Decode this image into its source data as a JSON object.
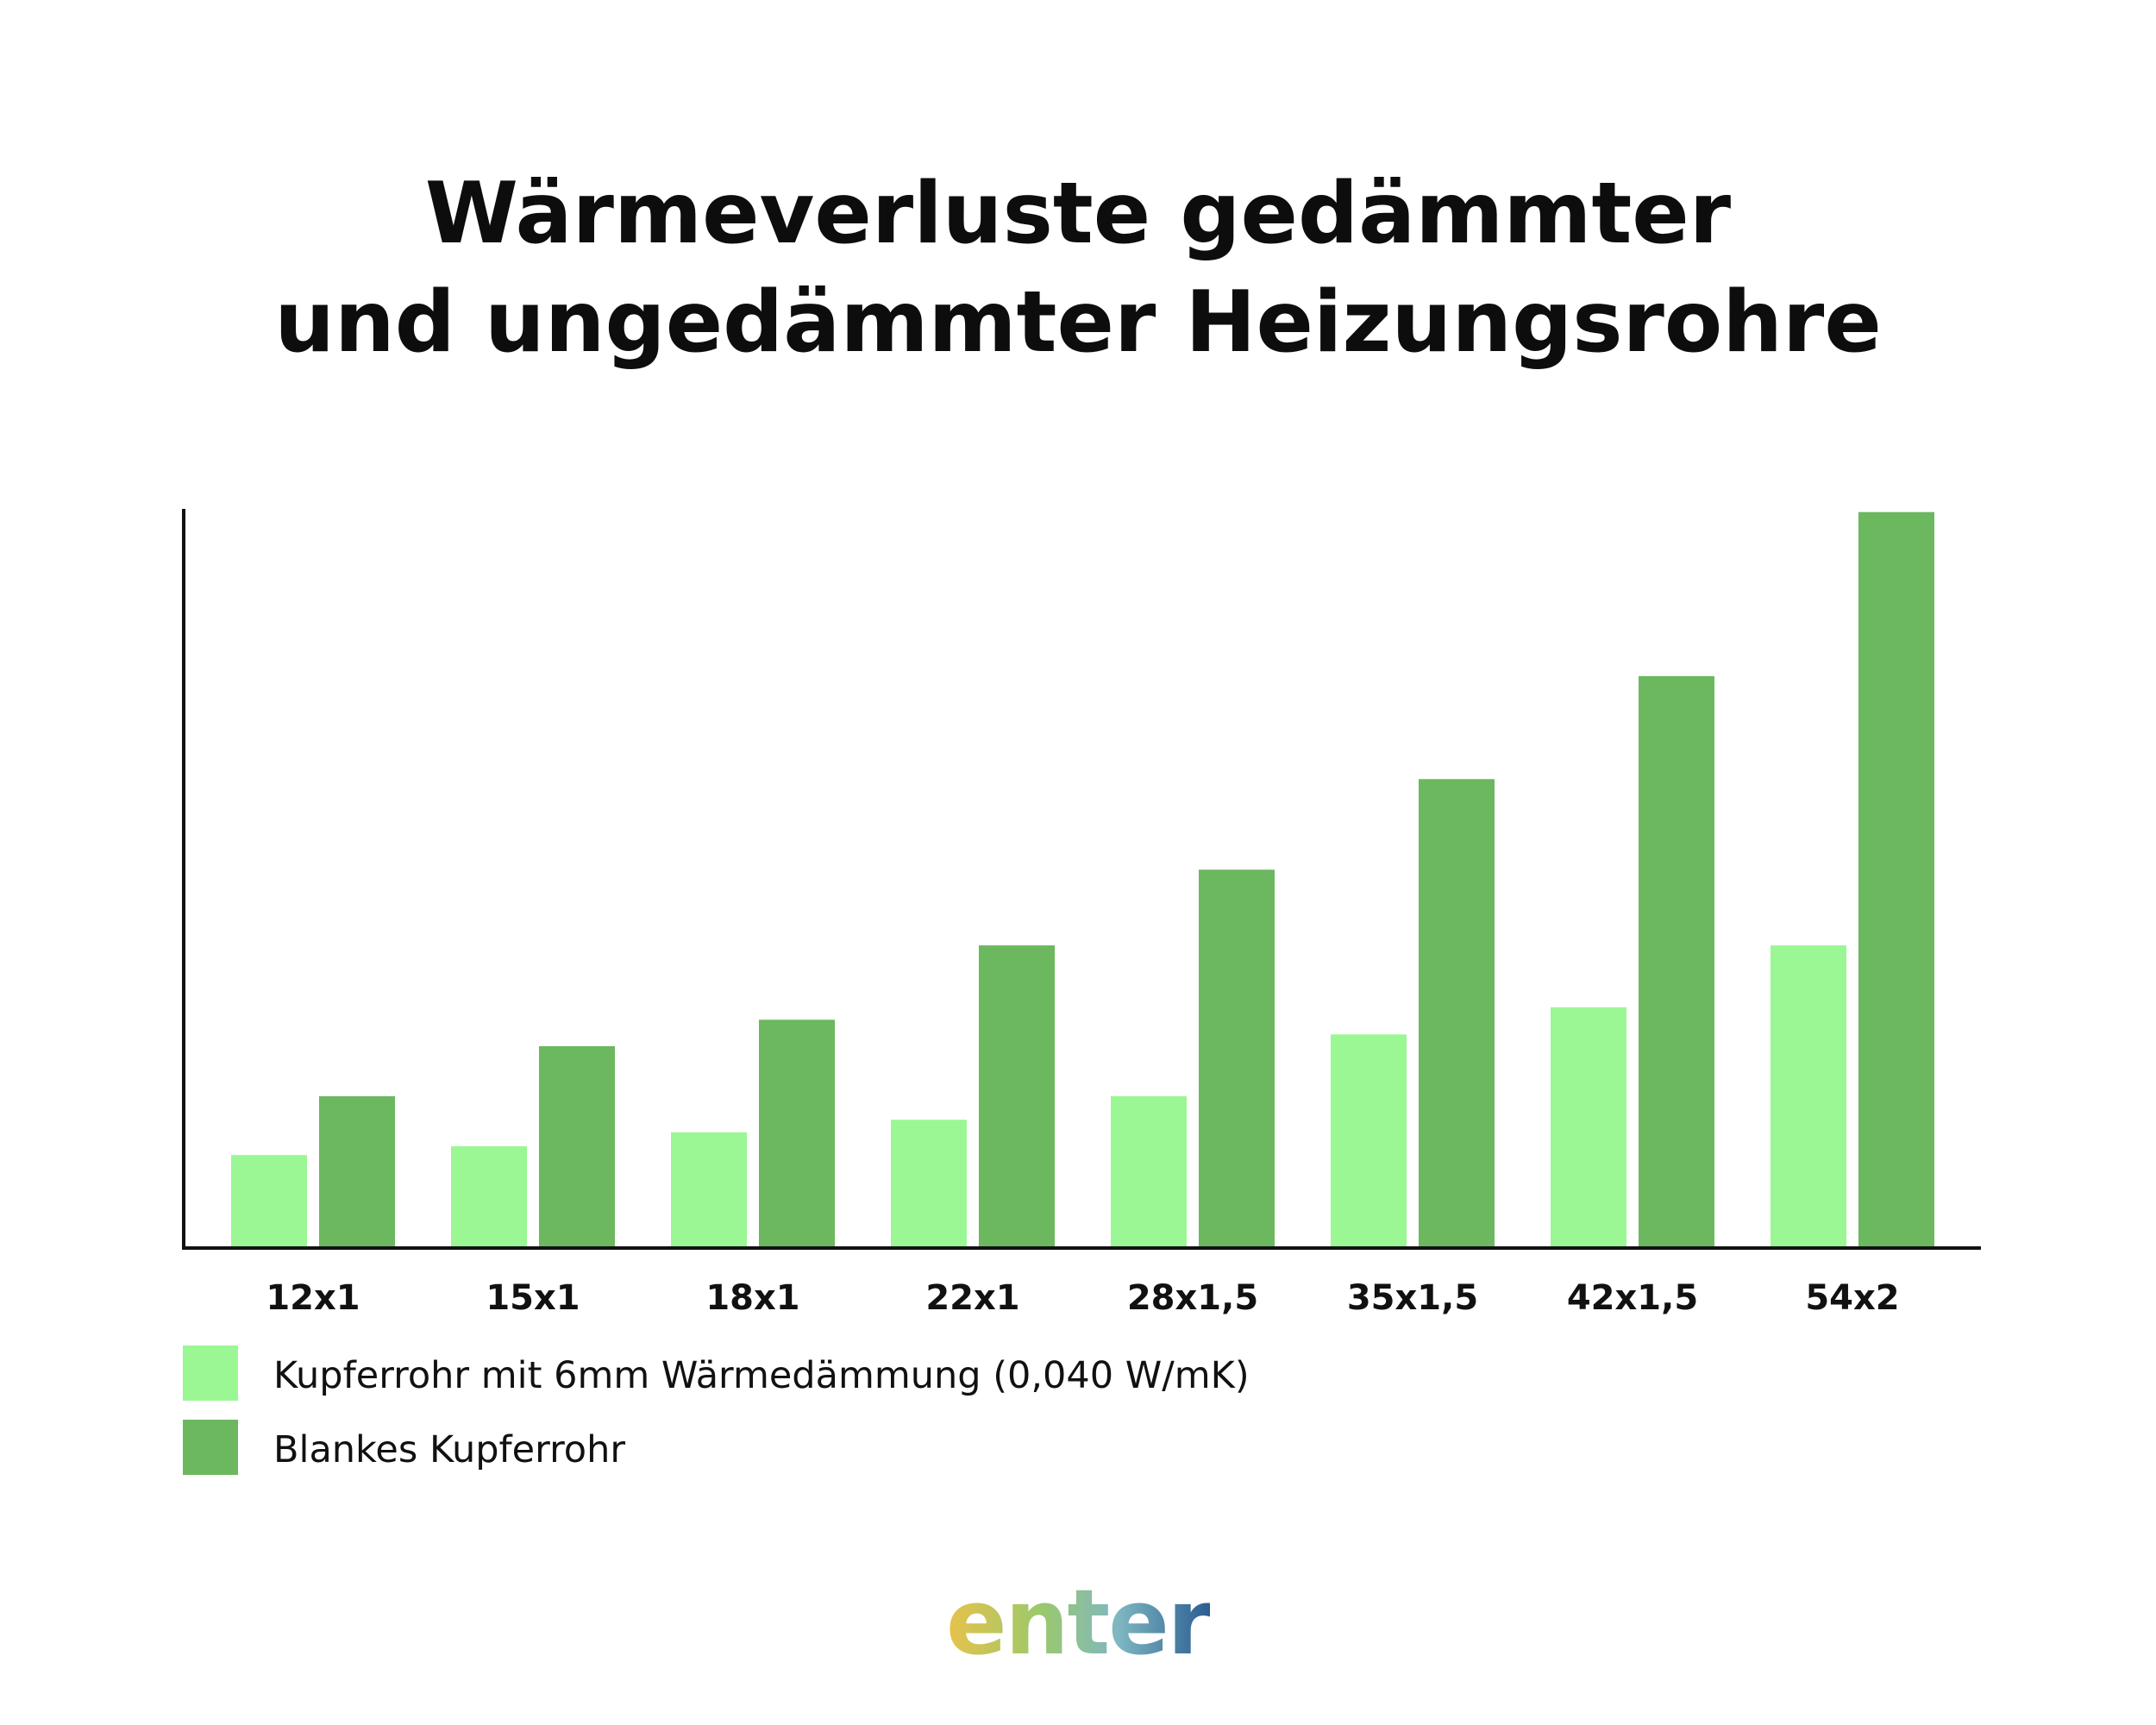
{
  "title": {
    "line1": "Wärmeverluste gedämmter",
    "line2": "und ungedämmter Heizungsrohre"
  },
  "logo": "enter",
  "colors": {
    "insulated": "#9af794",
    "bare": "#6bb85e",
    "axis": "#111111"
  },
  "legend": [
    {
      "label": "Kupferrohr mit 6mm Wärmedämmung (0,040 W/mK)",
      "color": "#9af794"
    },
    {
      "label": "Blankes Kupferrohr",
      "color": "#6bb85e"
    }
  ],
  "chart_data": {
    "type": "bar",
    "title": "Wärmeverluste gedämmter und ungedämmter Heizungsrohre",
    "categories": [
      "12x1",
      "15x1",
      "18x1",
      "22x1",
      "28x1,5",
      "35x1,5",
      "42x1,5",
      "54x2"
    ],
    "series": [
      {
        "name": "Kupferrohr mit 6mm Wärmedämmung (0,040 W/mK)",
        "color": "#9af794",
        "values": [
          0.124,
          0.136,
          0.155,
          0.172,
          0.204,
          0.288,
          0.325,
          0.409
        ]
      },
      {
        "name": "Blankes Kupferrohr",
        "color": "#6bb85e",
        "values": [
          0.204,
          0.272,
          0.308,
          0.409,
          0.512,
          0.635,
          0.775,
          0.998
        ]
      }
    ],
    "ylim": [
      0,
      1
    ],
    "y_ticks_shown": false,
    "grid": false,
    "legend_position": "bottom-left",
    "xlabel": "",
    "ylabel": ""
  }
}
